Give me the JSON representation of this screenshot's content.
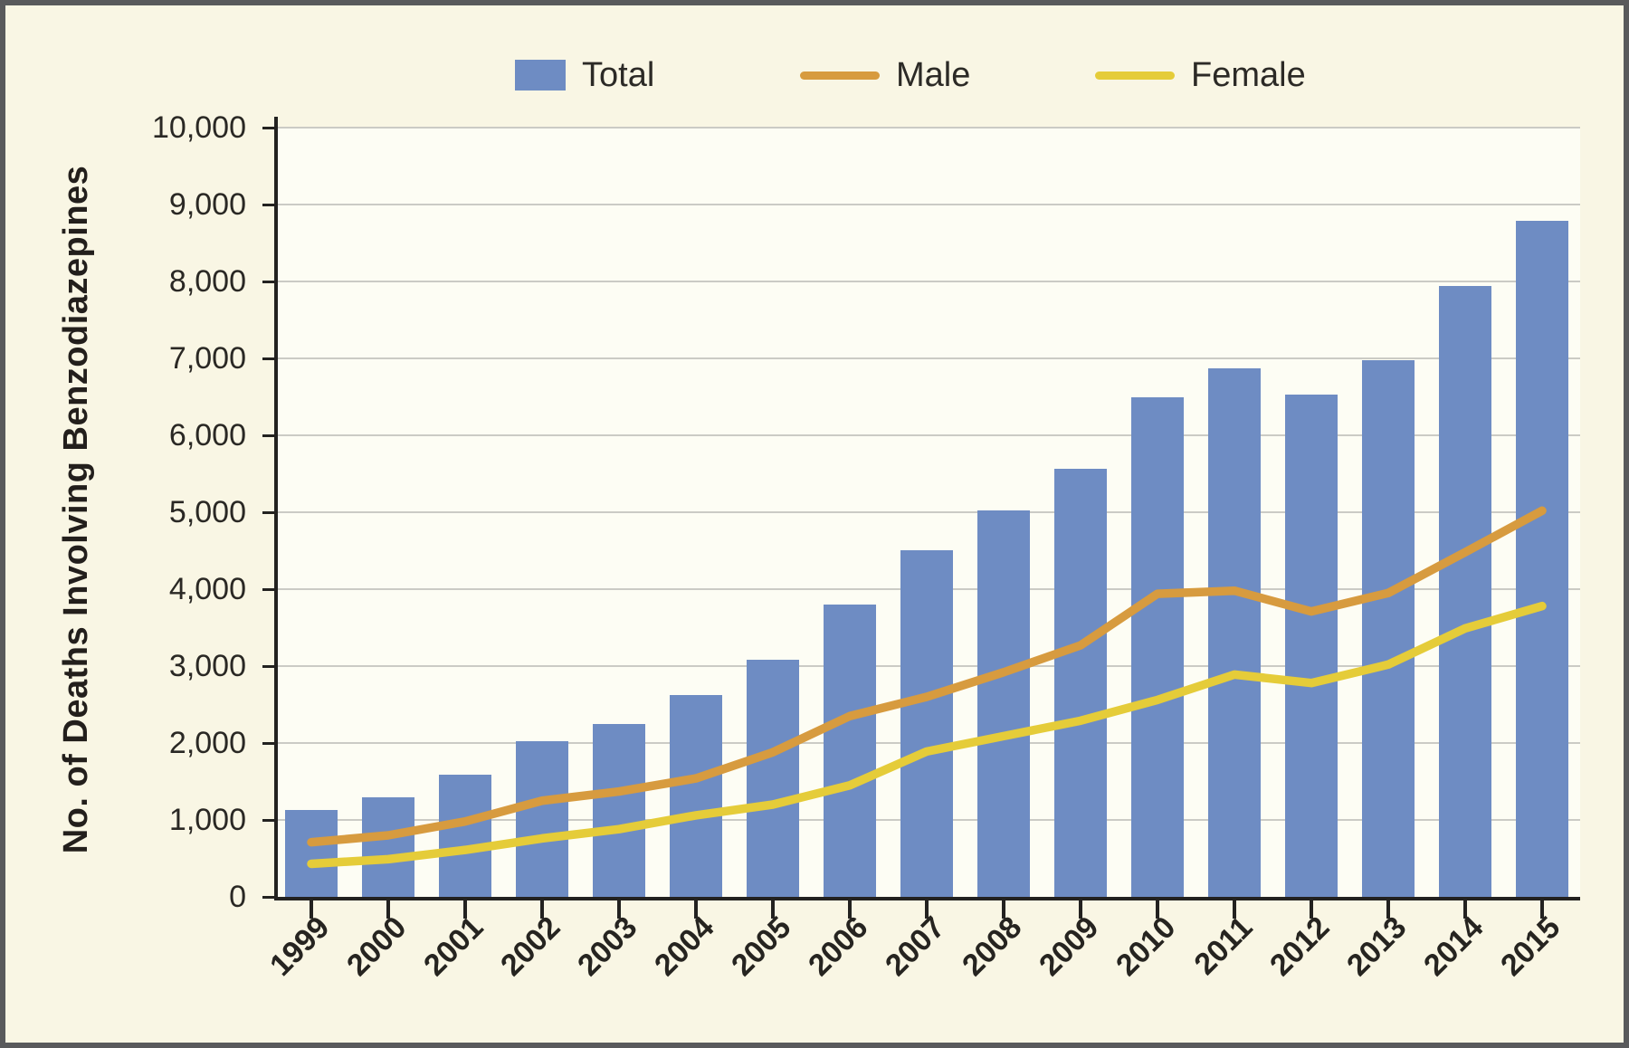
{
  "figure_title": "Deaths involving benzodiazepines chart",
  "legend": {
    "total_label": "Total",
    "male_label": "Male",
    "female_label": "Female"
  },
  "colors": {
    "total_bar": "#6e8cc3",
    "male_line": "#d79b3f",
    "female_line": "#e5cc39",
    "background": "#f9f6e4",
    "plot_background": "#fdfdf4",
    "gridline": "#cbcbc5",
    "axis": "#232220",
    "frame": "#595a5c"
  },
  "chart_data": {
    "type": "bar",
    "subtype": "bar-with-line-overlays",
    "title": "",
    "xlabel": "",
    "ylabel": "No. of Deaths Involving Benzodiazepines",
    "ylim": [
      0,
      10000
    ],
    "grid": "horizontal",
    "legend_position": "top",
    "categories": [
      "1999",
      "2000",
      "2001",
      "2002",
      "2003",
      "2004",
      "2005",
      "2006",
      "2007",
      "2008",
      "2009",
      "2010",
      "2011",
      "2012",
      "2013",
      "2014",
      "2015"
    ],
    "ytick_labels": [
      "0",
      "1,000",
      "2,000",
      "3,000",
      "4,000",
      "5,000",
      "6,000",
      "7,000",
      "8,000",
      "9,000",
      "10,000"
    ],
    "ytick_values": [
      0,
      1000,
      2000,
      3000,
      4000,
      5000,
      6000,
      7000,
      8000,
      9000,
      10000
    ],
    "series": [
      {
        "name": "Total",
        "type": "bar",
        "color": "#6e8cc3",
        "values": [
          1135,
          1298,
          1594,
          2022,
          2248,
          2627,
          3084,
          3805,
          4509,
          5020,
          5567,
          6497,
          6872,
          6524,
          6973,
          7945,
          8791
        ]
      },
      {
        "name": "Male",
        "type": "line",
        "color": "#d79b3f",
        "values": [
          710,
          800,
          980,
          1250,
          1370,
          1540,
          1880,
          2350,
          2600,
          2920,
          3270,
          3940,
          3980,
          3710,
          3950,
          4480,
          5020
        ]
      },
      {
        "name": "Female",
        "type": "line",
        "color": "#e5cc39",
        "values": [
          430,
          490,
          610,
          760,
          880,
          1060,
          1200,
          1450,
          1890,
          2090,
          2290,
          2560,
          2890,
          2780,
          3020,
          3490,
          3780
        ]
      }
    ]
  }
}
